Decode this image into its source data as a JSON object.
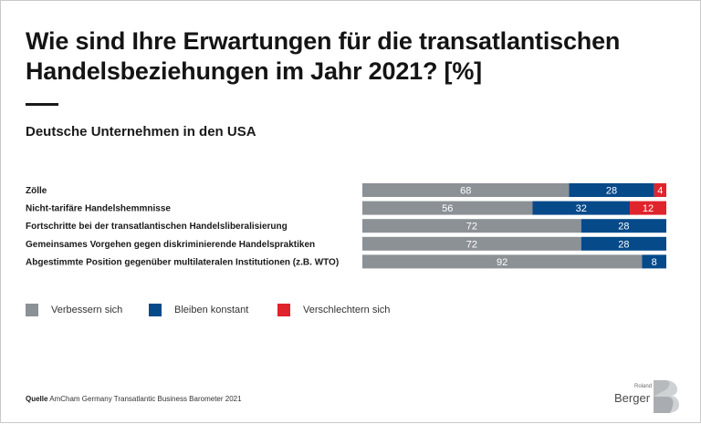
{
  "title": "Wie sind Ihre Erwartungen für die transatlantischen Handelsbeziehungen im Jahr 2021? [%]",
  "subtitle": "Deutsche Unternehmen in den USA",
  "source_label": "Quelle",
  "source_text": "AmCham Germany Transatlantic Business Barometer 2021",
  "logo": {
    "small_text": "Roland",
    "word": "Berger",
    "mark": "B"
  },
  "colors": {
    "improve": "#8c9196",
    "constant": "#064a8a",
    "worse": "#e0242c",
    "title_rule": "#1a1a1a"
  },
  "chart_data": {
    "type": "bar",
    "stacked": true,
    "orientation": "horizontal",
    "title": "Wie sind Ihre Erwartungen für die transatlantischen Handelsbeziehungen im Jahr 2021? [%]",
    "subtitle": "Deutsche Unternehmen in den USA",
    "categories": [
      "Zölle",
      "Nicht-tarifäre Handelshemmnisse",
      "Fortschritte bei der transatlantischen Handelsliberalisierung",
      "Gemeinsames Vorgehen gegen diskriminierende Handelspraktiken",
      "Abgestimmte Position gegenüber multilateralen Institutionen (z.B. WTO)"
    ],
    "series": [
      {
        "name": "Verbessern sich",
        "color": "#8c9196",
        "values": [
          68,
          56,
          72,
          72,
          92
        ]
      },
      {
        "name": "Bleiben konstant",
        "color": "#064a8a",
        "values": [
          28,
          32,
          28,
          28,
          8
        ]
      },
      {
        "name": "Verschlechtern sich",
        "color": "#e0242c",
        "values": [
          4,
          12,
          0,
          0,
          0
        ]
      }
    ],
    "xlim": [
      0,
      100
    ],
    "grid": false,
    "legend_position": "bottom-left"
  }
}
